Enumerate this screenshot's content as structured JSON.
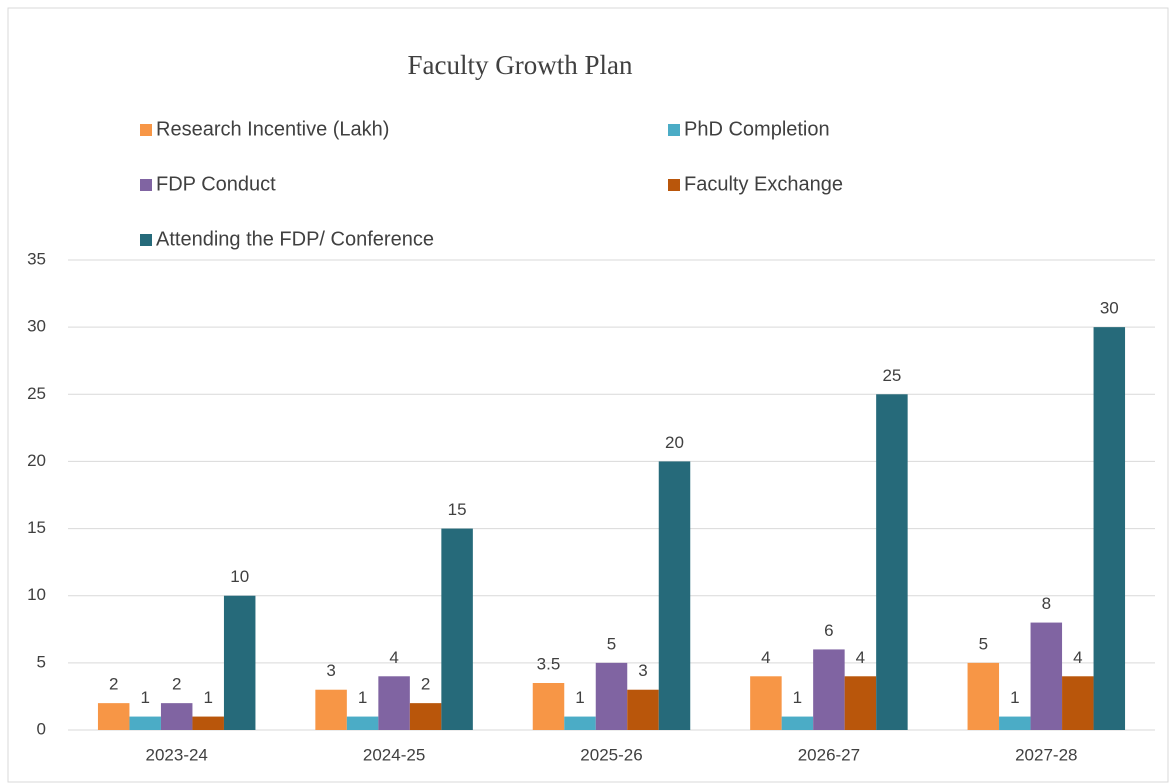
{
  "chart_data": {
    "type": "bar",
    "title": "Faculty Growth Plan",
    "categories": [
      "2023-24",
      "2024-25",
      "2025-26",
      "2026-27",
      "2027-28"
    ],
    "series": [
      {
        "name": "Research Incentive (Lakh)",
        "color": "#f79646",
        "values": [
          2,
          3,
          3.5,
          4,
          5
        ]
      },
      {
        "name": "PhD Completion",
        "color": "#4bacc6",
        "values": [
          1,
          1,
          1,
          1,
          1
        ]
      },
      {
        "name": "FDP Conduct",
        "color": "#8064a2",
        "values": [
          2,
          4,
          5,
          6,
          8
        ]
      },
      {
        "name": "Faculty Exchange",
        "color": "#b9560b",
        "values": [
          1,
          2,
          3,
          4,
          4
        ]
      },
      {
        "name": "Attending the FDP/ Conference",
        "color": "#266a7a",
        "values": [
          10,
          15,
          20,
          25,
          30
        ]
      }
    ],
    "ylim": [
      0,
      35
    ],
    "yticks": [
      0,
      5,
      10,
      15,
      20,
      25,
      30,
      35
    ],
    "grid": true,
    "legend": "top",
    "data_labels": true
  }
}
